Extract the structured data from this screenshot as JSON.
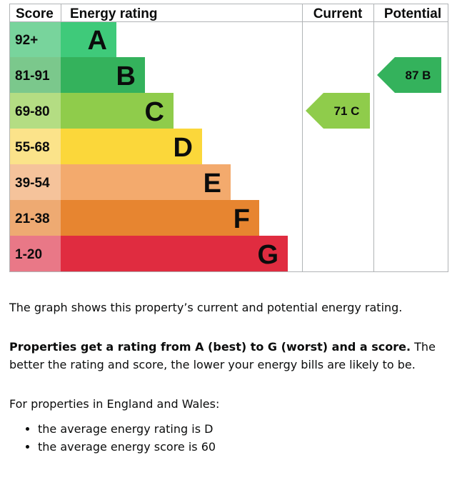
{
  "headers": {
    "score": "Score",
    "energy_rating": "Energy rating",
    "current": "Current",
    "potential": "Potential"
  },
  "chart_data": {
    "type": "bar",
    "bands": [
      {
        "letter": "A",
        "range": "92+",
        "min": 92,
        "max": 100,
        "color": "#3fca7a",
        "score_bg": "#78d49c"
      },
      {
        "letter": "B",
        "range": "81-91",
        "min": 81,
        "max": 91,
        "color": "#34b25c",
        "score_bg": "#7bc88c"
      },
      {
        "letter": "C",
        "range": "69-80",
        "min": 69,
        "max": 80,
        "color": "#8fcc4b",
        "score_bg": "#b4dd83"
      },
      {
        "letter": "D",
        "range": "55-68",
        "min": 55,
        "max": 68,
        "color": "#fbd73a",
        "score_bg": "#fbe38a"
      },
      {
        "letter": "E",
        "range": "39-54",
        "min": 39,
        "max": 54,
        "color": "#f3aa6d",
        "score_bg": "#f5c39b"
      },
      {
        "letter": "F",
        "range": "21-38",
        "min": 21,
        "max": 38,
        "color": "#e78530",
        "score_bg": "#eeaa72"
      },
      {
        "letter": "G",
        "range": "1-20",
        "min": 1,
        "max": 20,
        "color": "#e02c40",
        "score_bg": "#e97887"
      }
    ],
    "current": {
      "score": 71,
      "letter": "C",
      "label": "71 C",
      "color": "#8fcc4b"
    },
    "potential": {
      "score": 87,
      "letter": "B",
      "label": "87 B",
      "color": "#34b25c"
    }
  },
  "text": {
    "p1": "The graph shows this property’s current and potential energy rating.",
    "p2_bold": "Properties get a rating from A (best) to G (worst) and a score.",
    "p2_rest": " The better the rating and score, the lower your energy bills are likely to be.",
    "p3": "For properties in England and Wales:",
    "bullets": [
      "the average energy rating is D",
      "the average energy score is 60"
    ]
  }
}
